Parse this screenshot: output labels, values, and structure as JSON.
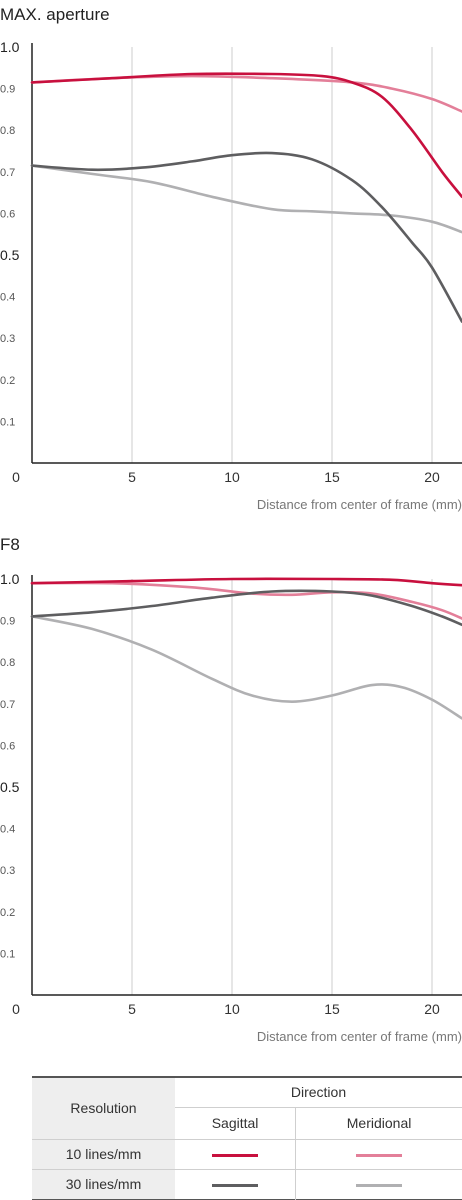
{
  "chart_data": [
    {
      "type": "line",
      "title": "MAX. aperture",
      "xlabel": "Distance from center of frame (mm)",
      "ylabel": "",
      "xlim": [
        0,
        21.5
      ],
      "ylim": [
        0,
        1.0
      ],
      "xticks": [
        "0",
        "5",
        "10",
        "15",
        "20"
      ],
      "yticks": [
        "0.1",
        "0.2",
        "0.3",
        "0.4",
        "0.5",
        "0.6",
        "0.7",
        "0.8",
        "0.9",
        "1.0"
      ],
      "grid": "vertical",
      "series": [
        {
          "resolution": "10 lines/mm",
          "direction": "Sagittal",
          "color": "#c8103e",
          "x": [
            0,
            4,
            8,
            12,
            14.5,
            16,
            17.5,
            19,
            20.5,
            21.5
          ],
          "y": [
            0.915,
            0.925,
            0.935,
            0.935,
            0.93,
            0.915,
            0.88,
            0.8,
            0.7,
            0.64
          ]
        },
        {
          "resolution": "10 lines/mm",
          "direction": "Meridional",
          "color": "#e37f99",
          "x": [
            0,
            4,
            8,
            12,
            16,
            18,
            20,
            21.5
          ],
          "y": [
            0.915,
            0.925,
            0.93,
            0.925,
            0.915,
            0.9,
            0.875,
            0.845
          ]
        },
        {
          "resolution": "30 lines/mm",
          "direction": "Sagittal",
          "color": "#5e5e60",
          "x": [
            0,
            3,
            5.5,
            8,
            10,
            12,
            14,
            16,
            17.5,
            19,
            20,
            21.5
          ],
          "y": [
            0.715,
            0.705,
            0.71,
            0.725,
            0.74,
            0.745,
            0.73,
            0.68,
            0.615,
            0.53,
            0.47,
            0.34
          ]
        },
        {
          "resolution": "30 lines/mm",
          "direction": "Meridional",
          "color": "#b0b0b2",
          "x": [
            0,
            3,
            6,
            9,
            12,
            14,
            16,
            18,
            20,
            21.5
          ],
          "y": [
            0.715,
            0.695,
            0.675,
            0.64,
            0.61,
            0.605,
            0.6,
            0.595,
            0.58,
            0.555
          ]
        }
      ]
    },
    {
      "type": "line",
      "title": "F8",
      "xlabel": "Distance from center of frame (mm)",
      "ylabel": "",
      "xlim": [
        0,
        21.5
      ],
      "ylim": [
        0,
        1.0
      ],
      "xticks": [
        "0",
        "5",
        "10",
        "15",
        "20"
      ],
      "yticks": [
        "0.1",
        "0.2",
        "0.3",
        "0.4",
        "0.5",
        "0.6",
        "0.7",
        "0.8",
        "0.9",
        "1.0"
      ],
      "grid": "vertical",
      "series": [
        {
          "resolution": "10 lines/mm",
          "direction": "Sagittal",
          "color": "#c8103e",
          "x": [
            0,
            5,
            10,
            15,
            18,
            20,
            21.5
          ],
          "y": [
            0.99,
            0.995,
            1.0,
            1.0,
            0.998,
            0.99,
            0.985
          ]
        },
        {
          "resolution": "10 lines/mm",
          "direction": "Meridional",
          "color": "#e37f99",
          "x": [
            0,
            4,
            8,
            11,
            13,
            15,
            17,
            19,
            20.5,
            21.5
          ],
          "y": [
            0.99,
            0.99,
            0.98,
            0.965,
            0.962,
            0.968,
            0.965,
            0.945,
            0.925,
            0.905
          ]
        },
        {
          "resolution": "30 lines/mm",
          "direction": "Sagittal",
          "color": "#5e5e60",
          "x": [
            0,
            3,
            6,
            9,
            12,
            15,
            17,
            19,
            20.5,
            21.5
          ],
          "y": [
            0.91,
            0.92,
            0.935,
            0.955,
            0.97,
            0.97,
            0.96,
            0.935,
            0.91,
            0.89
          ]
        },
        {
          "resolution": "30 lines/mm",
          "direction": "Meridional",
          "color": "#b0b0b2",
          "x": [
            0,
            3,
            6,
            9,
            11,
            13,
            15,
            17,
            18.5,
            20,
            21.5
          ],
          "y": [
            0.91,
            0.88,
            0.83,
            0.76,
            0.72,
            0.705,
            0.72,
            0.745,
            0.74,
            0.71,
            0.665
          ]
        }
      ]
    }
  ],
  "legend": {
    "resolution_header": "Resolution",
    "direction_header": "Direction",
    "sagittal": "Sagittal",
    "meridional": "Meridional",
    "rows": [
      {
        "label": "10 lines/mm",
        "sagittal_color": "#c8103e",
        "meridional_color": "#e37f99"
      },
      {
        "label": "30 lines/mm",
        "sagittal_color": "#5e5e60",
        "meridional_color": "#b0b0b2"
      }
    ]
  }
}
